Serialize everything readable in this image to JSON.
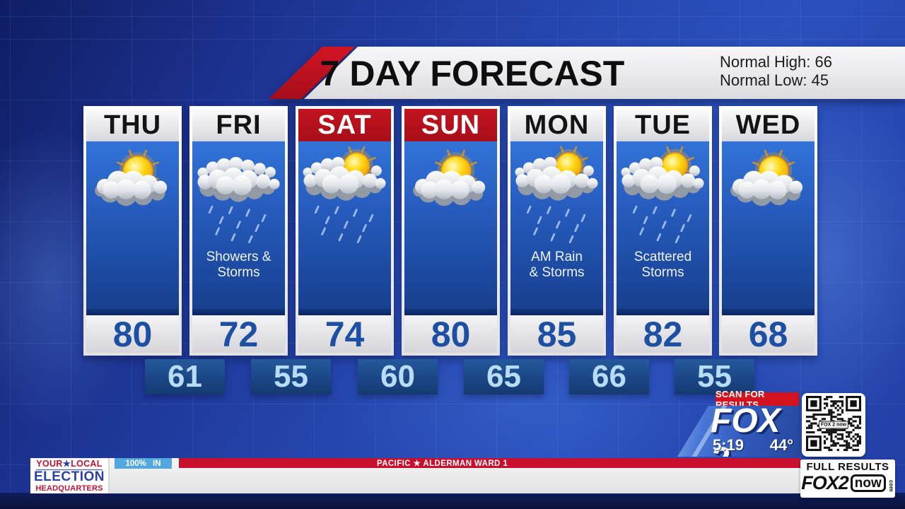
{
  "header": {
    "title": "7 DAY FORECAST",
    "normal_high": "Normal High: 66",
    "normal_low": "Normal Low: 45"
  },
  "days": [
    {
      "name": "THU",
      "header_style": "light",
      "icon": "sun-cloud",
      "condition_line1": "",
      "condition_line2": "",
      "high": "80"
    },
    {
      "name": "FRI",
      "header_style": "light",
      "icon": "clouds-rain",
      "condition_line1": "Showers &",
      "condition_line2": "Storms",
      "high": "72"
    },
    {
      "name": "SAT",
      "header_style": "red",
      "icon": "sun-clouds-rain",
      "condition_line1": "",
      "condition_line2": "",
      "high": "74"
    },
    {
      "name": "SUN",
      "header_style": "red",
      "icon": "sun-cloud",
      "condition_line1": "",
      "condition_line2": "",
      "high": "80"
    },
    {
      "name": "MON",
      "header_style": "light",
      "icon": "sun-clouds-rain",
      "condition_line1": "AM Rain",
      "condition_line2": "& Storms",
      "high": "85"
    },
    {
      "name": "TUE",
      "header_style": "light",
      "icon": "sun-clouds-rain",
      "condition_line1": "Scattered",
      "condition_line2": "Storms",
      "high": "82"
    },
    {
      "name": "WED",
      "header_style": "light",
      "icon": "sun-cloud",
      "condition_line1": "",
      "condition_line2": "",
      "high": "68"
    }
  ],
  "lows": [
    "61",
    "55",
    "60",
    "65",
    "66",
    "55"
  ],
  "overlay": {
    "scan_label": "SCAN FOR RESULTS",
    "station_logo": "FOX 2",
    "time": "5:19",
    "temperature": "44°",
    "qr_center_label": "FOX 2 now"
  },
  "ticker": {
    "election_your": "YOUR",
    "election_star": "★",
    "election_local": "LOCAL",
    "election_line2": "ELECTION",
    "election_line3": "HEADQUARTERS",
    "percent_in": "100% IN",
    "race_title": "PACIFIC ★ ALDERMAN WARD 1",
    "full_results": "FULL RESULTS",
    "site_fox": "FOX2",
    "site_now": "now",
    "site_com": "com"
  },
  "colors": {
    "weekend_header_red": "#b5121d",
    "ticker_red": "#c8102e",
    "banner_red": "#c0111f",
    "high_temp_blue": "#1d4fa2",
    "low_temp_text": "#b7ddf6",
    "column_body_blue": "#2559ba",
    "percent_in_blue": "#53a7e0"
  }
}
